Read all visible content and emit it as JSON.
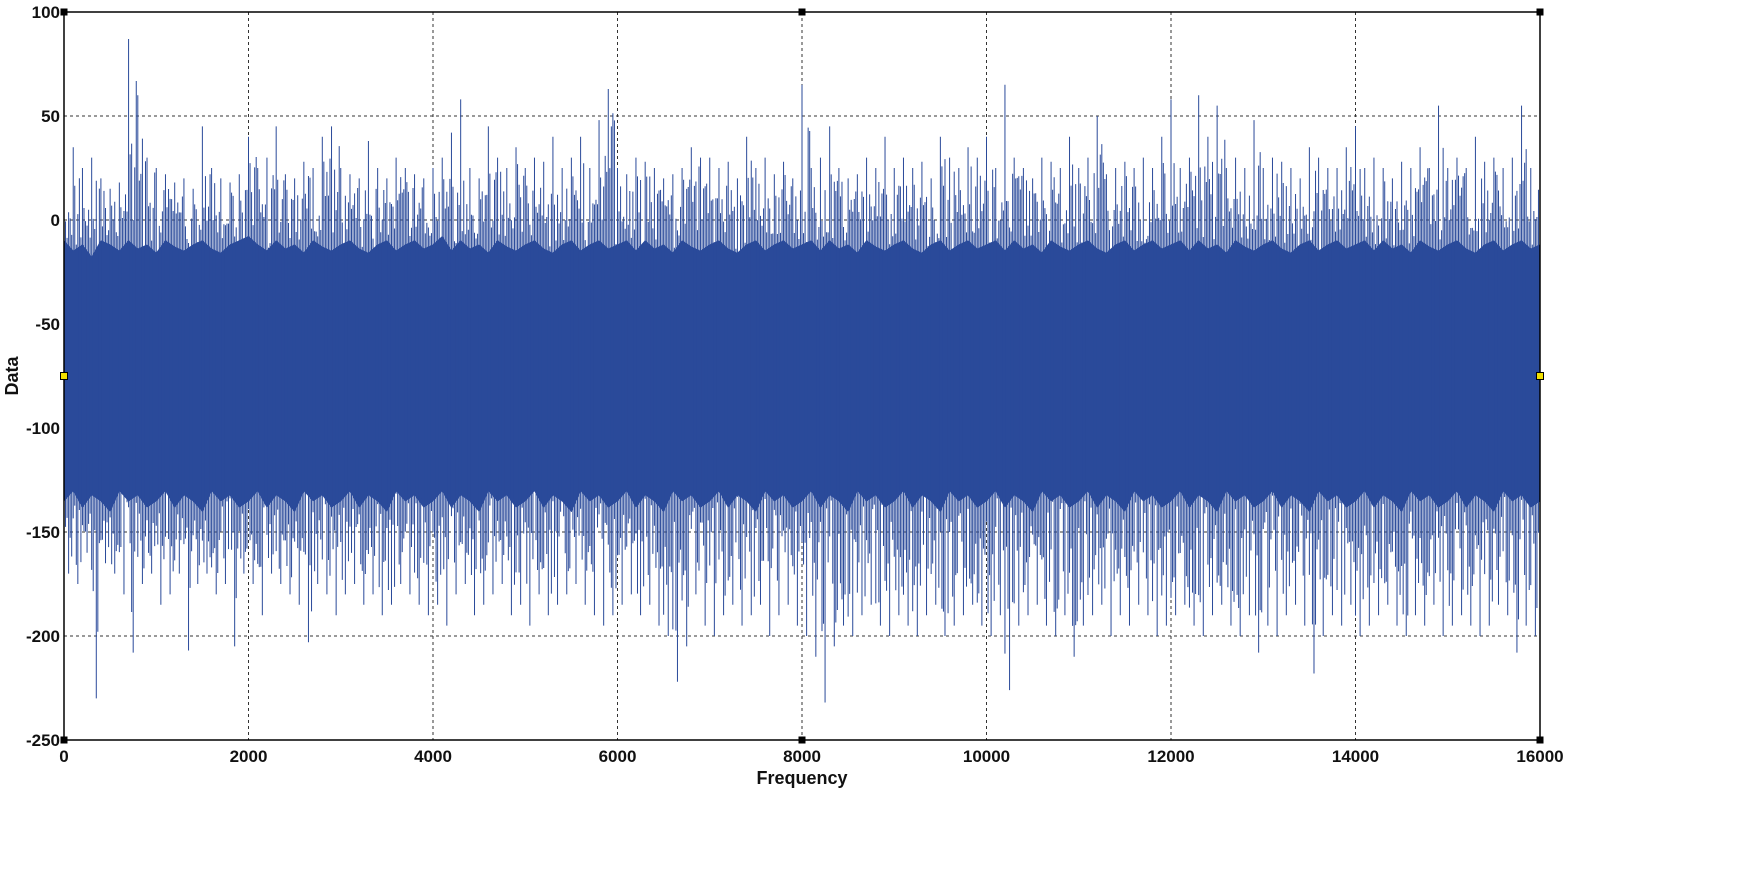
{
  "chart_data": {
    "type": "line",
    "title": "",
    "xlabel": "Frequency",
    "ylabel": "Data",
    "xlim": [
      0,
      16000
    ],
    "ylim": [
      -250,
      100
    ],
    "x_ticks": [
      0,
      2000,
      4000,
      6000,
      8000,
      10000,
      12000,
      14000,
      16000
    ],
    "y_ticks": [
      100,
      50,
      0,
      -50,
      -100,
      -150,
      -200,
      -250
    ],
    "grid": true,
    "legend": "none",
    "series_color": "#2A4A9A",
    "series": [
      {
        "sampling": "approximate envelope read from the plot, one point per 100 Hz",
        "x": [
          0,
          100,
          200,
          300,
          400,
          500,
          600,
          700,
          800,
          900,
          1000,
          1100,
          1200,
          1300,
          1400,
          1500,
          1600,
          1700,
          1800,
          1900,
          2000,
          2100,
          2200,
          2300,
          2400,
          2500,
          2600,
          2700,
          2800,
          2900,
          3000,
          3100,
          3200,
          3300,
          3400,
          3500,
          3600,
          3700,
          3800,
          3900,
          4000,
          4100,
          4200,
          4300,
          4400,
          4500,
          4600,
          4700,
          4800,
          4900,
          5000,
          5100,
          5200,
          5300,
          5400,
          5500,
          5600,
          5700,
          5800,
          5900,
          6000,
          6100,
          6200,
          6300,
          6400,
          6500,
          6600,
          6700,
          6800,
          6900,
          7000,
          7100,
          7200,
          7300,
          7400,
          7500,
          7600,
          7700,
          7800,
          7900,
          8000,
          8100,
          8200,
          8300,
          8400,
          8500,
          8600,
          8700,
          8800,
          8900,
          9000,
          9100,
          9200,
          9300,
          9400,
          9500,
          9600,
          9700,
          9800,
          9900,
          10000,
          10100,
          10200,
          10300,
          10400,
          10500,
          10600,
          10700,
          10800,
          10900,
          11000,
          11100,
          11200,
          11300,
          11400,
          11500,
          11600,
          11700,
          11800,
          11900,
          12000,
          12100,
          12200,
          12300,
          12400,
          12500,
          12600,
          12700,
          12800,
          12900,
          13000,
          13100,
          13200,
          13300,
          13400,
          13500,
          13600,
          13700,
          13800,
          13900,
          14000,
          14100,
          14200,
          14300,
          14400,
          14500,
          14600,
          14700,
          14800,
          14900,
          15000,
          15100,
          15200,
          15300,
          15400,
          15500,
          15600,
          15700,
          15800,
          15900,
          16000
        ],
        "y_max": [
          50,
          35,
          25,
          30,
          20,
          15,
          18,
          87,
          60,
          30,
          25,
          22,
          18,
          20,
          15,
          45,
          25,
          20,
          18,
          22,
          40,
          25,
          30,
          45,
          22,
          20,
          28,
          25,
          40,
          45,
          25,
          22,
          20,
          38,
          25,
          20,
          30,
          25,
          22,
          20,
          25,
          30,
          42,
          58,
          25,
          20,
          45,
          30,
          25,
          35,
          25,
          30,
          28,
          40,
          25,
          30,
          40,
          25,
          48,
          63,
          25,
          22,
          30,
          28,
          25,
          20,
          22,
          25,
          35,
          30,
          30,
          25,
          28,
          20,
          40,
          25,
          30,
          22,
          28,
          20,
          65,
          25,
          30,
          45,
          25,
          20,
          22,
          30,
          25,
          40,
          25,
          30,
          25,
          28,
          20,
          40,
          30,
          25,
          35,
          30,
          40,
          25,
          65,
          30,
          25,
          20,
          30,
          28,
          25,
          40,
          25,
          30,
          50,
          22,
          25,
          28,
          25,
          30,
          25,
          40,
          58,
          25,
          30,
          60,
          40,
          55,
          25,
          30,
          25,
          48,
          25,
          30,
          28,
          25,
          20,
          35,
          30,
          25,
          25,
          35,
          45,
          25,
          30,
          25,
          20,
          28,
          25,
          35,
          25,
          55,
          25,
          30,
          25,
          40,
          28,
          30,
          25,
          30,
          55,
          25,
          27
        ],
        "y_min": [
          -170,
          -175,
          -160,
          -230,
          -165,
          -170,
          -180,
          -208,
          -175,
          -170,
          -185,
          -180,
          -170,
          -207,
          -175,
          -170,
          -180,
          -175,
          -205,
          -170,
          -175,
          -190,
          -170,
          -175,
          -180,
          -185,
          -203,
          -175,
          -180,
          -190,
          -180,
          -175,
          -185,
          -180,
          -190,
          -185,
          -175,
          -180,
          -185,
          -190,
          -185,
          -195,
          -180,
          -175,
          -190,
          -185,
          -180,
          -175,
          -190,
          -185,
          -195,
          -180,
          -190,
          -185,
          -180,
          -175,
          -185,
          -190,
          -195,
          -190,
          -185,
          -180,
          -190,
          -185,
          -195,
          -200,
          -222,
          -205,
          -180,
          -195,
          -200,
          -190,
          -185,
          -195,
          -190,
          -185,
          -200,
          -190,
          -185,
          -195,
          -200,
          -210,
          -232,
          -205,
          -195,
          -200,
          -190,
          -185,
          -195,
          -200,
          -190,
          -195,
          -200,
          -190,
          -185,
          -200,
          -195,
          -190,
          -185,
          -195,
          -200,
          -190,
          -226,
          -195,
          -190,
          -185,
          -195,
          -200,
          -190,
          -210,
          -195,
          -190,
          -185,
          -200,
          -190,
          -195,
          -185,
          -190,
          -200,
          -195,
          -190,
          -185,
          -195,
          -200,
          -190,
          -185,
          -195,
          -200,
          -190,
          -208,
          -195,
          -200,
          -190,
          -185,
          -195,
          -218,
          -200,
          -190,
          -195,
          -185,
          -200,
          -195,
          -190,
          -185,
          -195,
          -200,
          -190,
          -195,
          -185,
          -200,
          -195,
          -190,
          -195,
          -200,
          -195,
          -185,
          -190,
          -208,
          -195,
          -200,
          -190
        ],
        "band_high": [
          -10,
          -15,
          -12,
          -18,
          -10,
          -12,
          -15,
          -10,
          -14,
          -12,
          -16,
          -10,
          -13,
          -15,
          -12,
          -10,
          -14,
          -16,
          -12,
          -10,
          -8,
          -12,
          -15,
          -10,
          -14,
          -12,
          -16,
          -10,
          -13,
          -15,
          -12,
          -10,
          -14,
          -16,
          -12,
          -10,
          -15,
          -12,
          -10,
          -14,
          -12,
          -8,
          -15,
          -10,
          -14,
          -12,
          -16,
          -10,
          -13,
          -15,
          -12,
          -10,
          -14,
          -16,
          -12,
          -10,
          -15,
          -12,
          -10,
          -14,
          -12,
          -10,
          -15,
          -10,
          -14,
          -12,
          -16,
          -10,
          -13,
          -15,
          -12,
          -10,
          -14,
          -16,
          -12,
          -10,
          -15,
          -12,
          -10,
          -14,
          -12,
          -10,
          -15,
          -10,
          -14,
          -12,
          -16,
          -10,
          -13,
          -15,
          -12,
          -10,
          -14,
          -16,
          -12,
          -10,
          -15,
          -12,
          -10,
          -14,
          -12,
          -10,
          -15,
          -10,
          -14,
          -12,
          -16,
          -10,
          -13,
          -15,
          -12,
          -10,
          -14,
          -16,
          -12,
          -10,
          -15,
          -12,
          -10,
          -14,
          -12,
          -10,
          -15,
          -10,
          -14,
          -12,
          -16,
          -10,
          -13,
          -15,
          -12,
          -10,
          -14,
          -16,
          -12,
          -10,
          -15,
          -12,
          -10,
          -14,
          -12,
          -10,
          -15,
          -10,
          -14,
          -12,
          -16,
          -10,
          -13,
          -15,
          -12,
          -10,
          -14,
          -16,
          -12,
          -10,
          -15,
          -12,
          -10,
          -14,
          -12
        ],
        "band_low": [
          -135,
          -130,
          -138,
          -132,
          -135,
          -140,
          -130,
          -135,
          -132,
          -138,
          -135,
          -130,
          -138,
          -132,
          -135,
          -140,
          -130,
          -135,
          -132,
          -138,
          -135,
          -130,
          -138,
          -132,
          -135,
          -140,
          -130,
          -135,
          -132,
          -138,
          -135,
          -130,
          -138,
          -132,
          -135,
          -140,
          -130,
          -135,
          -132,
          -138,
          -135,
          -130,
          -138,
          -132,
          -135,
          -140,
          -130,
          -135,
          -132,
          -138,
          -135,
          -130,
          -138,
          -132,
          -135,
          -140,
          -130,
          -135,
          -132,
          -138,
          -135,
          -130,
          -138,
          -132,
          -135,
          -140,
          -130,
          -135,
          -132,
          -138,
          -135,
          -130,
          -138,
          -132,
          -135,
          -140,
          -130,
          -135,
          -132,
          -138,
          -135,
          -130,
          -138,
          -132,
          -135,
          -140,
          -130,
          -135,
          -132,
          -138,
          -135,
          -130,
          -138,
          -132,
          -135,
          -140,
          -130,
          -135,
          -132,
          -138,
          -135,
          -130,
          -138,
          -132,
          -135,
          -140,
          -130,
          -135,
          -132,
          -138,
          -135,
          -130,
          -138,
          -132,
          -135,
          -140,
          -130,
          -135,
          -132,
          -138,
          -135,
          -130,
          -138,
          -132,
          -135,
          -140,
          -130,
          -135,
          -132,
          -138,
          -135,
          -130,
          -138,
          -132,
          -135,
          -140,
          -130,
          -135,
          -132,
          -138,
          -135,
          -130,
          -138,
          -132,
          -135,
          -140,
          -130,
          -135,
          -132,
          -138,
          -135,
          -130,
          -138,
          -132,
          -135,
          -140,
          -130,
          -135,
          -132,
          -138,
          -135
        ]
      }
    ]
  }
}
